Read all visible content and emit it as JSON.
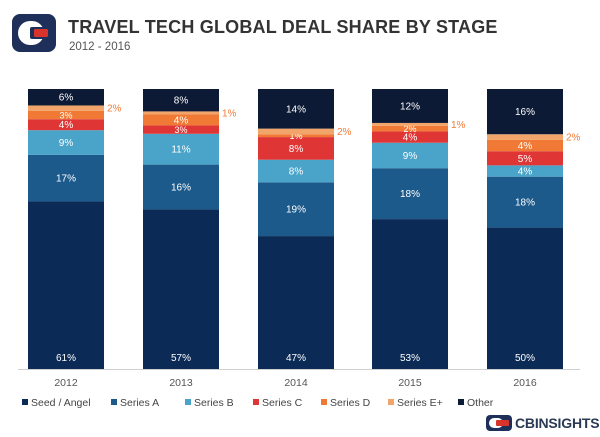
{
  "header": {
    "title": "TRAVEL TECH GLOBAL DEAL SHARE BY STAGE",
    "subtitle": "2012 - 2016"
  },
  "brand": {
    "name": "CBINSIGHTS",
    "colors": {
      "blue": "#1e2f5a",
      "red": "#d9342b"
    }
  },
  "chart_data": {
    "type": "bar",
    "stacked": true,
    "percent_stacked": true,
    "title": "TRAVEL TECH GLOBAL DEAL SHARE BY STAGE",
    "subtitle": "2012 - 2016",
    "xlabel": "",
    "ylabel": "",
    "ylim": [
      0,
      100
    ],
    "grid": false,
    "legend_position": "bottom",
    "categories": [
      "2012",
      "2013",
      "2014",
      "2015",
      "2016"
    ],
    "series": [
      {
        "name": "Seed / Angel",
        "color": "#0b2a55",
        "values": [
          61,
          57,
          47,
          53,
          50
        ],
        "labels": [
          "61%",
          "57%",
          "47%",
          "53%",
          "50%"
        ]
      },
      {
        "name": "Series A",
        "color": "#1c5a8c",
        "values": [
          17,
          16,
          19,
          18,
          18
        ],
        "labels": [
          "17%",
          "16%",
          "19%",
          "18%",
          "18%"
        ]
      },
      {
        "name": "Series B",
        "color": "#4aa3c8",
        "values": [
          9,
          11,
          8,
          9,
          4
        ],
        "labels": [
          "9%",
          "11%",
          "8%",
          "9%",
          "4%"
        ]
      },
      {
        "name": "Series C",
        "color": "#e03535",
        "values": [
          4,
          3,
          8,
          4,
          5
        ],
        "labels": [
          "4%",
          "3%",
          "8%",
          "4%",
          "5%"
        ]
      },
      {
        "name": "Series D",
        "color": "#f07a35",
        "values": [
          3,
          4,
          1,
          2,
          4
        ],
        "labels": [
          "3%",
          "4%",
          "1%",
          "2%",
          "4%"
        ]
      },
      {
        "name": "Series E+",
        "color": "#f2a56a",
        "values": [
          2,
          1,
          2,
          1,
          2
        ],
        "labels": [
          "2%",
          "1%",
          "2%",
          "1%",
          "2%"
        ]
      },
      {
        "name": "Other",
        "color": "#0c1a35",
        "values": [
          6,
          8,
          14,
          12,
          16
        ],
        "labels": [
          "6%",
          "8%",
          "14%",
          "12%",
          "16%"
        ]
      }
    ]
  }
}
